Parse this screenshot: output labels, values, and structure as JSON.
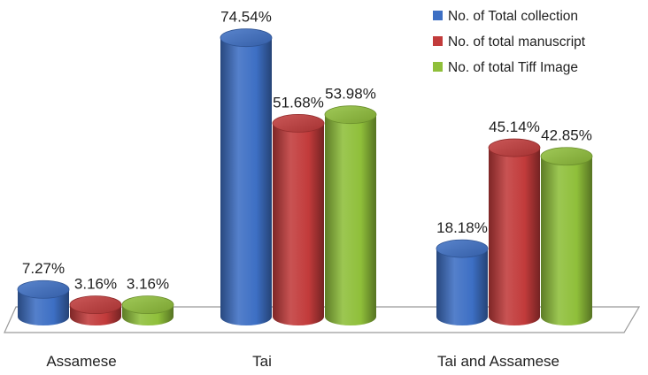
{
  "chart_data": {
    "type": "bar",
    "style": "3d-cylinder",
    "title": "",
    "xlabel": "",
    "ylabel": "",
    "ylim": [
      0,
      80
    ],
    "grid": false,
    "legend_position": "top-right",
    "categories": [
      "Assamese",
      "Tai",
      "Tai and Assamese"
    ],
    "series": [
      {
        "name": "No. of Total collection",
        "color": "#3d6fc4",
        "values": [
          7.27,
          74.54,
          18.18
        ],
        "labels": [
          "7.27%",
          "74.54%",
          "18.18%"
        ]
      },
      {
        "name": "No. of total manuscript",
        "color": "#c23b3b",
        "values": [
          3.16,
          51.68,
          45.14
        ],
        "labels": [
          "3.16%",
          "51.68%",
          "45.14%"
        ]
      },
      {
        "name": "No. of total Tiff Image",
        "color": "#8fbf3a",
        "values": [
          3.16,
          53.98,
          42.85
        ],
        "labels": [
          "3.16%",
          "53.98%",
          "42.85%"
        ]
      }
    ]
  }
}
